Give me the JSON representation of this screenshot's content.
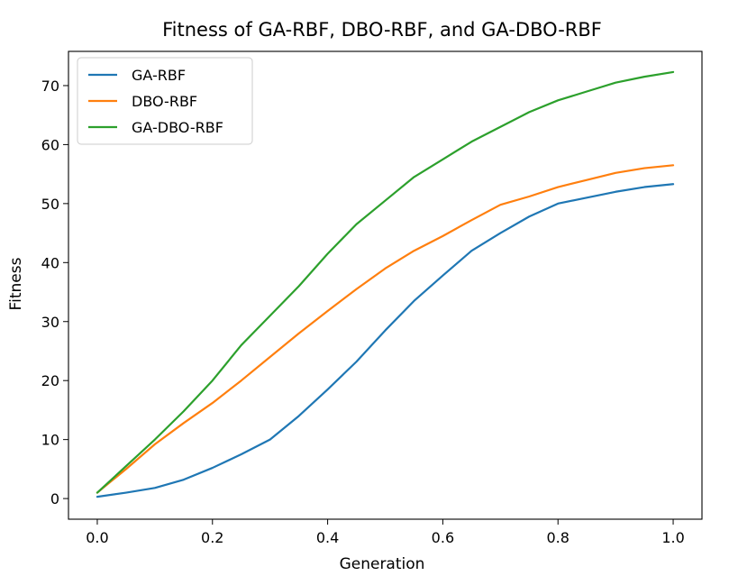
{
  "chart_data": {
    "type": "line",
    "title": "Fitness of GA-RBF, DBO-RBF, and GA-DBO-RBF",
    "xlabel": "Generation",
    "ylabel": "Fitness",
    "xlim": [
      -0.05,
      1.05
    ],
    "ylim": [
      -3.5,
      75.8
    ],
    "xticks": [
      0.0,
      0.2,
      0.4,
      0.6,
      0.8,
      1.0
    ],
    "xtick_labels": [
      "0.0",
      "0.2",
      "0.4",
      "0.6",
      "0.8",
      "1.0"
    ],
    "yticks": [
      0,
      10,
      20,
      30,
      40,
      50,
      60,
      70
    ],
    "ytick_labels": [
      "0",
      "10",
      "20",
      "30",
      "40",
      "50",
      "60",
      "70"
    ],
    "grid": false,
    "legend_position": "upper-left",
    "x": [
      0.0,
      0.05,
      0.1,
      0.15,
      0.2,
      0.25,
      0.3,
      0.35,
      0.4,
      0.45,
      0.5,
      0.55,
      0.6,
      0.65,
      0.7,
      0.75,
      0.8,
      0.85,
      0.9,
      0.95,
      1.0
    ],
    "series": [
      {
        "name": "GA-RBF",
        "color": "#1f77b4",
        "values": [
          0.3,
          1.0,
          1.8,
          3.2,
          5.2,
          7.5,
          10.0,
          14.0,
          18.5,
          23.2,
          28.5,
          33.5,
          37.8,
          42.0,
          45.0,
          47.8,
          50.0,
          51.0,
          52.0,
          52.8,
          53.3
        ]
      },
      {
        "name": "DBO-RBF",
        "color": "#ff7f0e",
        "values": [
          1.0,
          5.0,
          9.2,
          12.8,
          16.2,
          20.0,
          24.0,
          28.0,
          31.8,
          35.5,
          39.0,
          42.0,
          44.5,
          47.2,
          49.8,
          51.2,
          52.8,
          54.0,
          55.2,
          56.0,
          56.5
        ]
      },
      {
        "name": "GA-DBO-RBF",
        "color": "#2ca02c",
        "values": [
          1.0,
          5.5,
          10.0,
          14.8,
          20.0,
          26.0,
          31.0,
          36.0,
          41.5,
          46.5,
          50.5,
          54.5,
          57.5,
          60.5,
          63.0,
          65.5,
          67.5,
          69.0,
          70.5,
          71.5,
          72.3
        ]
      }
    ]
  }
}
